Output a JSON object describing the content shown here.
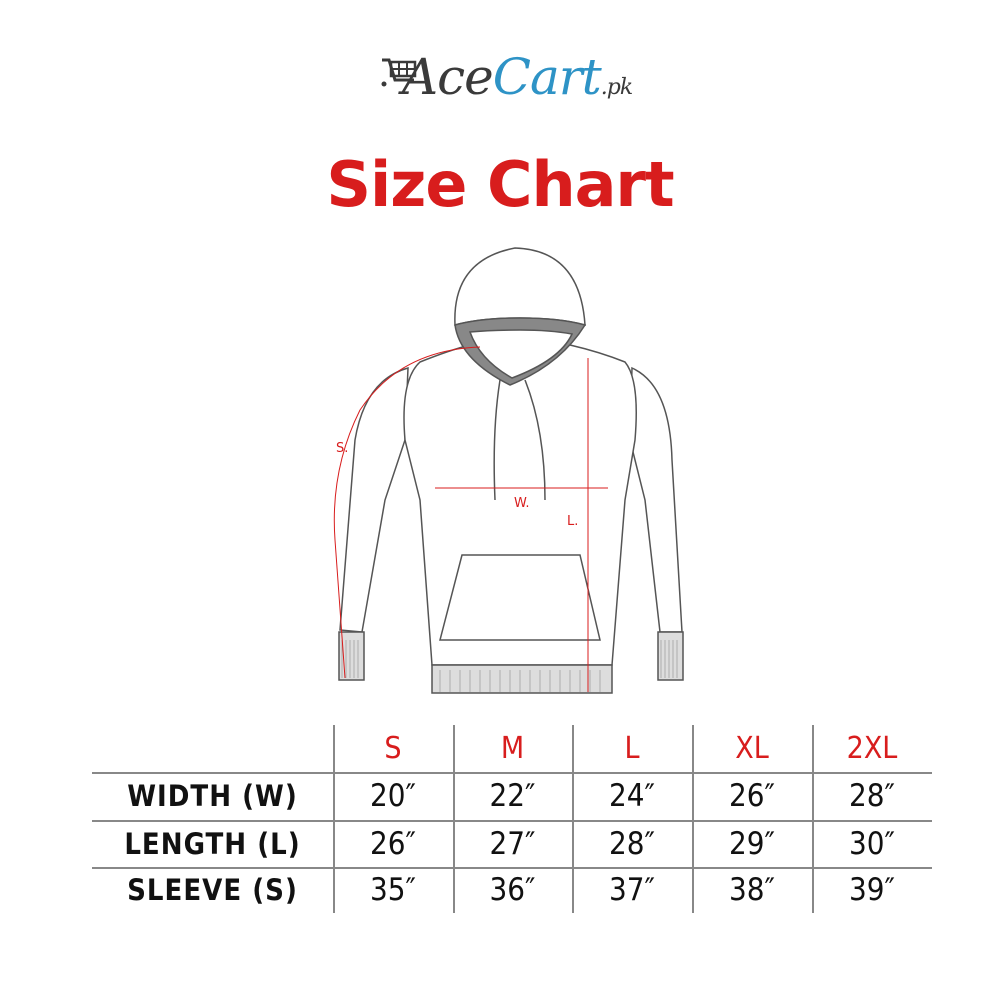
{
  "brand": {
    "logo_main": "Ace",
    "logo_accent": "Cart",
    "logo_suffix": ".pk",
    "colors": {
      "dark": "#3a3a3a",
      "blue": "#2e93c6"
    }
  },
  "title": "Size Chart",
  "accent_color": "#d81d1d",
  "diagram": {
    "labels": {
      "sleeve": "S.",
      "width": "W.",
      "length": "L."
    }
  },
  "table": {
    "columns": [
      "S",
      "M",
      "L",
      "XL",
      "2XL"
    ],
    "rows": [
      {
        "label": "WIDTH (W)",
        "values": [
          "20″",
          "22″",
          "24″",
          "26″",
          "28″"
        ]
      },
      {
        "label": "LENGTH (L)",
        "values": [
          "26″",
          "27″",
          "28″",
          "29″",
          "30″"
        ]
      },
      {
        "label": "SLEEVE (S)",
        "values": [
          "35″",
          "36″",
          "37″",
          "38″",
          "39″"
        ]
      }
    ]
  }
}
